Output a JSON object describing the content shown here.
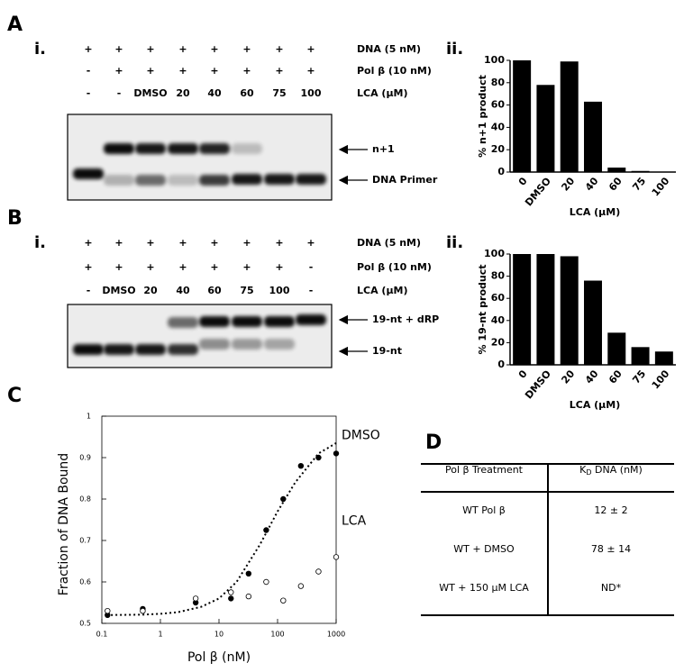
{
  "panels": {
    "a": "A",
    "b": "B",
    "c": "C",
    "d": "D",
    "a_i": "i.",
    "a_ii": "ii.",
    "b_i": "i.",
    "b_ii": "ii."
  },
  "gel_a": {
    "rows": [
      {
        "label": "DNA (5 nM)",
        "signs": [
          "+",
          "+",
          "+",
          "+",
          "+",
          "+",
          "+",
          "+"
        ]
      },
      {
        "label": "Pol β (10 nM)",
        "signs": [
          "-",
          "+",
          "+",
          "+",
          "+",
          "+",
          "+",
          "+"
        ]
      },
      {
        "label": "LCA (μM)",
        "signs": [
          "-",
          "-",
          "DMSO",
          "20",
          "40",
          "60",
          "75",
          "100"
        ]
      }
    ],
    "band_labels": [
      "n+1",
      "DNA Primer"
    ]
  },
  "gel_b": {
    "rows": [
      {
        "label": "DNA (5 nM)",
        "signs": [
          "+",
          "+",
          "+",
          "+",
          "+",
          "+",
          "+",
          "+"
        ]
      },
      {
        "label": "Pol β (10 nM)",
        "signs": [
          "+",
          "+",
          "+",
          "+",
          "+",
          "+",
          "+",
          "-"
        ]
      },
      {
        "label": "LCA (μM)",
        "signs": [
          "-",
          "DMSO",
          "20",
          "40",
          "60",
          "75",
          "100",
          "-"
        ]
      }
    ],
    "band_labels": [
      "19-nt + dRP",
      "19-nt"
    ]
  },
  "chart_data": [
    {
      "type": "bar",
      "ylabel": "% n+1 product",
      "xlabel": "LCA (μM)",
      "categories": [
        "0",
        "DMSO",
        "20",
        "40",
        "60",
        "75",
        "100"
      ],
      "values": [
        100,
        78,
        99,
        63,
        4,
        1,
        0.3
      ],
      "color": "#000000",
      "ylim": [
        0,
        100
      ],
      "yticks": [
        0,
        20,
        40,
        60,
        80,
        100
      ]
    },
    {
      "type": "bar",
      "ylabel": "% 19-nt product",
      "xlabel": "LCA (μM)",
      "categories": [
        "0",
        "DMSO",
        "20",
        "40",
        "60",
        "75",
        "100"
      ],
      "values": [
        100,
        100,
        98,
        76,
        29,
        16,
        12
      ],
      "color": "#000000",
      "ylim": [
        0,
        100
      ],
      "yticks": [
        0,
        20,
        40,
        60,
        80,
        100
      ]
    },
    {
      "type": "scatter",
      "xlabel": "Pol β (nM)",
      "ylabel": "Fraction of DNA Bound",
      "xscale": "log",
      "x": [
        0.125,
        0.5,
        4,
        16,
        32,
        64,
        125,
        250,
        500,
        1000
      ],
      "series": [
        {
          "name": "DMSO",
          "color": "#000000",
          "marker": "filled",
          "values": [
            0.52,
            0.535,
            0.55,
            0.56,
            0.62,
            0.725,
            0.8,
            0.88,
            0.9,
            0.91
          ]
        },
        {
          "name": "LCA",
          "color": "#000000",
          "marker": "open",
          "values": [
            0.53,
            0.53,
            0.56,
            0.575,
            0.565,
            0.6,
            0.555,
            0.59,
            0.625,
            0.66
          ]
        }
      ],
      "fit_line": {
        "x": [
          0.12,
          0.5,
          1,
          2,
          5,
          10,
          20,
          50,
          100,
          200,
          500,
          1000
        ],
        "values": [
          0.52,
          0.521,
          0.523,
          0.527,
          0.54,
          0.56,
          0.6,
          0.69,
          0.77,
          0.84,
          0.91,
          0.935
        ]
      },
      "xlim": [
        0.1,
        1000
      ],
      "xticks": [
        0.1,
        1,
        10,
        100,
        1000
      ],
      "ylim": [
        0.5,
        1
      ],
      "yticks": [
        0.5,
        0.6,
        0.7,
        0.8,
        0.9,
        1
      ]
    }
  ],
  "table": {
    "header": {
      "treatment": "Pol β Treatment",
      "kd_main": "K",
      "kd_sub": "D",
      "kd_rest": " DNA (nM)"
    },
    "rows": [
      [
        "WT Pol β",
        "12 ± 2"
      ],
      [
        "WT + DMSO",
        "78 ± 14"
      ],
      [
        "WT + 150 μM LCA",
        "ND*"
      ]
    ]
  }
}
